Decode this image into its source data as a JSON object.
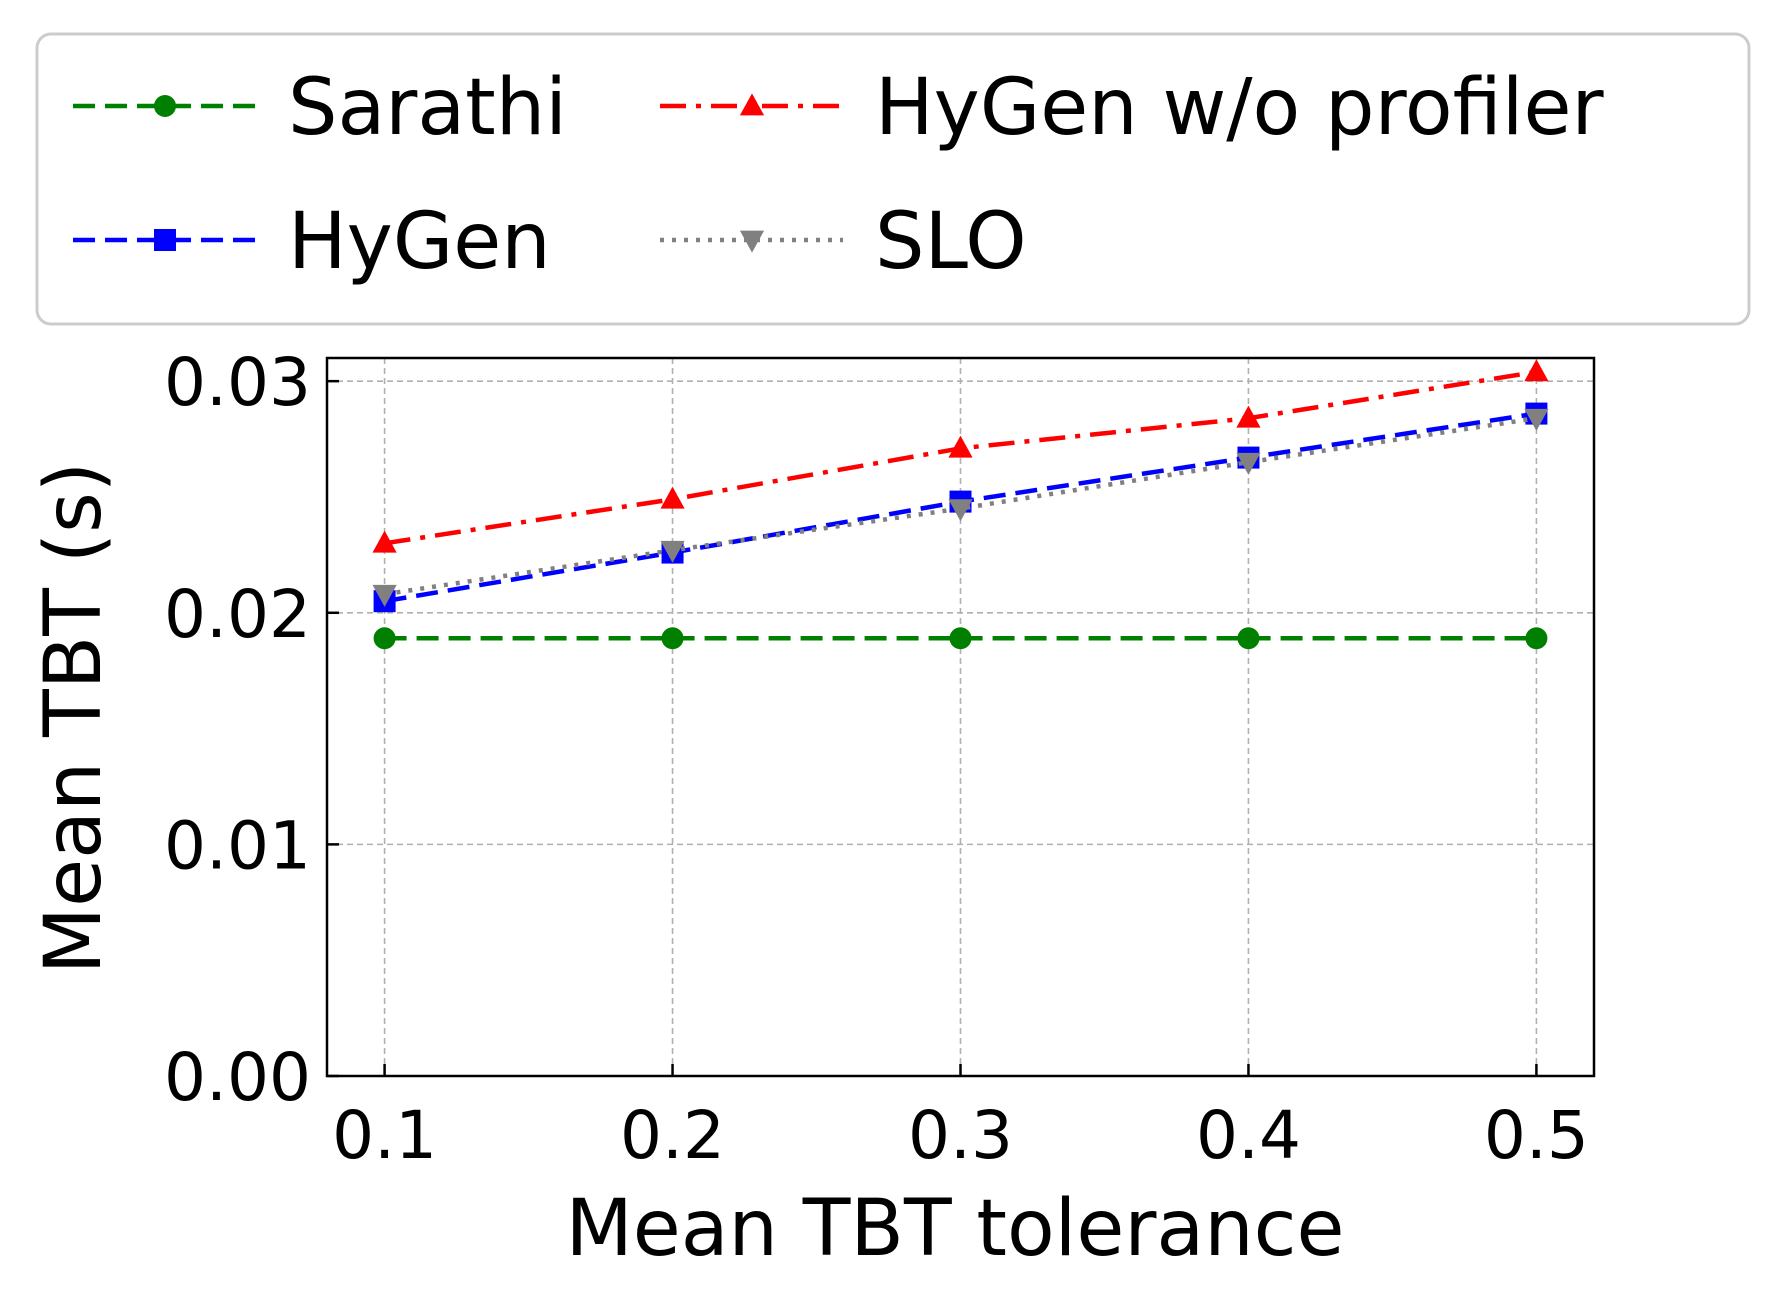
{
  "chart_data": {
    "type": "line",
    "title": "",
    "xlabel": "Mean TBT tolerance",
    "ylabel": "Mean TBT (s)",
    "x": [
      0.1,
      0.2,
      0.3,
      0.4,
      0.5
    ],
    "xticks": [
      "0.1",
      "0.2",
      "0.3",
      "0.4",
      "0.5"
    ],
    "xlim": [
      0.08,
      0.52
    ],
    "yticks": [
      "0.00",
      "0.01",
      "0.02",
      "0.03"
    ],
    "ylim": [
      0.0,
      0.031
    ],
    "grid": true,
    "legend_position": "top",
    "series": [
      {
        "name": "Sarathi",
        "color": "#008000",
        "line_style": "dashed",
        "marker": "circle",
        "values": [
          0.0189,
          0.0189,
          0.0189,
          0.0189,
          0.0189
        ]
      },
      {
        "name": "HyGen",
        "color": "#0000ff",
        "line_style": "dashed",
        "marker": "square",
        "values": [
          0.0205,
          0.0226,
          0.0248,
          0.0267,
          0.0286
        ]
      },
      {
        "name": "HyGen w/o profiler",
        "color": "#ff0000",
        "line_style": "dashdot",
        "marker": "triangle-up",
        "values": [
          0.023,
          0.0249,
          0.0271,
          0.0284,
          0.0304
        ]
      },
      {
        "name": "SLO",
        "color": "#808080",
        "line_style": "dotted",
        "marker": "triangle-down",
        "values": [
          0.0208,
          0.0227,
          0.0245,
          0.0265,
          0.0284
        ]
      }
    ]
  }
}
